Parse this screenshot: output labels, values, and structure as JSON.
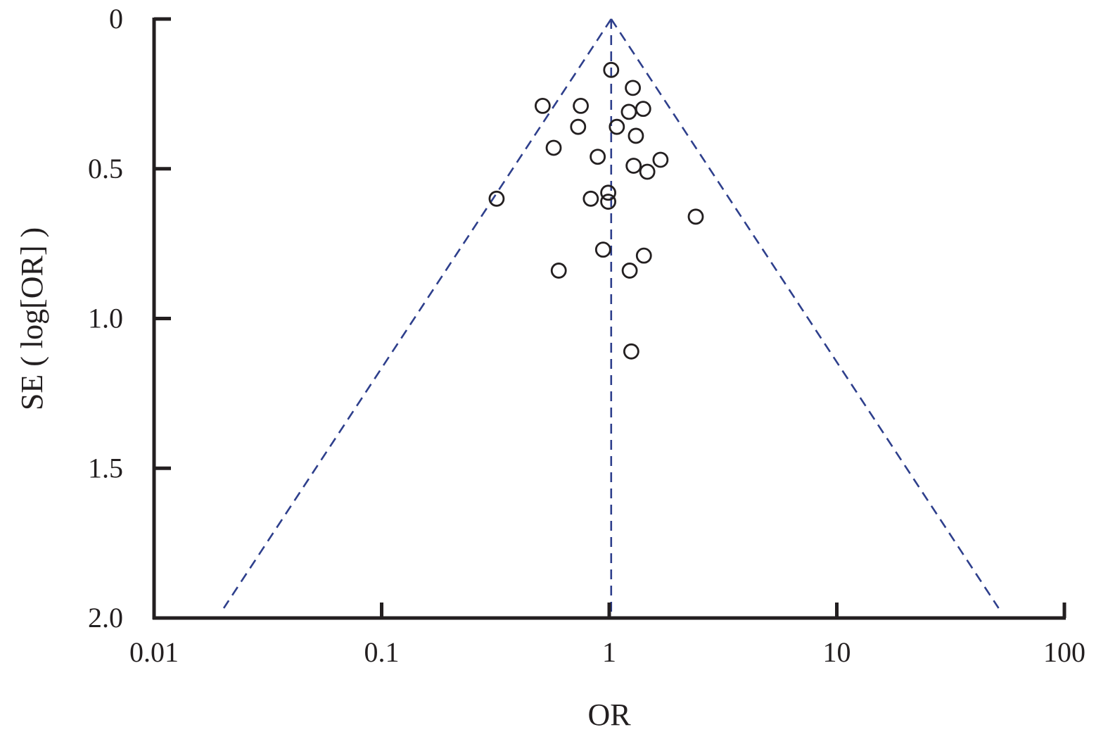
{
  "chart_data": {
    "type": "scatter",
    "subtype": "funnel-plot",
    "title": "",
    "xlabel": "OR",
    "ylabel": "SE ( log[OR] )",
    "x_scale": "log",
    "xlim": [
      0.01,
      100
    ],
    "ylim": [
      0,
      2.0
    ],
    "y_inverted": true,
    "x_ticks": [
      0.01,
      0.1,
      1,
      10,
      100
    ],
    "x_tick_labels": [
      "0.01",
      "0.1",
      "1",
      "10",
      "100"
    ],
    "y_ticks": [
      0,
      0.5,
      1.0,
      1.5,
      2.0
    ],
    "y_tick_labels": [
      "0",
      "0.5",
      "1.0",
      "1.5",
      "2.0"
    ],
    "pooled_or": 1.02,
    "funnel_limit_z": 1.96,
    "grid": false,
    "legend": "none",
    "colors": {
      "axis": "#231f20",
      "points": "#231f20",
      "funnel": "#2e3f8c"
    },
    "points": [
      {
        "x": 1.02,
        "y": 0.17
      },
      {
        "x": 1.27,
        "y": 0.23
      },
      {
        "x": 0.51,
        "y": 0.29
      },
      {
        "x": 0.75,
        "y": 0.29
      },
      {
        "x": 1.41,
        "y": 0.3
      },
      {
        "x": 1.22,
        "y": 0.31
      },
      {
        "x": 0.73,
        "y": 0.36
      },
      {
        "x": 1.08,
        "y": 0.36
      },
      {
        "x": 1.31,
        "y": 0.39
      },
      {
        "x": 0.57,
        "y": 0.43
      },
      {
        "x": 0.89,
        "y": 0.46
      },
      {
        "x": 1.68,
        "y": 0.47
      },
      {
        "x": 1.28,
        "y": 0.49
      },
      {
        "x": 1.47,
        "y": 0.51
      },
      {
        "x": 0.99,
        "y": 0.58
      },
      {
        "x": 0.32,
        "y": 0.6
      },
      {
        "x": 0.83,
        "y": 0.6
      },
      {
        "x": 0.99,
        "y": 0.61
      },
      {
        "x": 2.4,
        "y": 0.66
      },
      {
        "x": 0.94,
        "y": 0.77
      },
      {
        "x": 1.42,
        "y": 0.79
      },
      {
        "x": 0.6,
        "y": 0.84
      },
      {
        "x": 1.23,
        "y": 0.84
      },
      {
        "x": 1.25,
        "y": 1.11
      }
    ]
  }
}
